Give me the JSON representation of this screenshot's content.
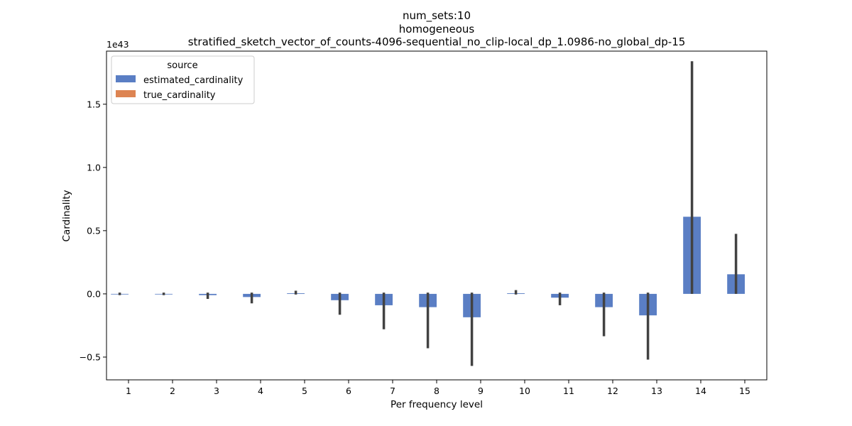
{
  "chart_data": {
    "type": "bar",
    "title_lines": [
      "num_sets:10",
      "homogeneous",
      "stratified_sketch_vector_of_counts-4096-sequential_no_clip-local_dp_1.0986-no_global_dp-15"
    ],
    "xlabel": "Per frequency level",
    "ylabel": "Cardinality",
    "y_offset_label": "1e43",
    "categories": [
      "1",
      "2",
      "3",
      "4",
      "5",
      "6",
      "7",
      "8",
      "9",
      "10",
      "11",
      "12",
      "13",
      "14",
      "15"
    ],
    "ylim": [
      -0.68,
      1.92
    ],
    "y_ticks": [
      -0.5,
      0.0,
      0.5,
      1.0,
      1.5
    ],
    "y_tick_labels": [
      "−0.5",
      "0.0",
      "0.5",
      "1.0",
      "1.5"
    ],
    "legend": {
      "title": "source",
      "placement": "upper-left",
      "entries": [
        {
          "label": "estimated_cardinality",
          "color": "#5a7ec4"
        },
        {
          "label": "true_cardinality",
          "color": "#dd8452"
        }
      ]
    },
    "series": [
      {
        "name": "estimated_cardinality",
        "color": "#5a7ec4",
        "values": [
          0.0,
          0.0,
          -0.01,
          -0.025,
          0.005,
          -0.05,
          -0.09,
          -0.105,
          -0.185,
          0.005,
          -0.03,
          -0.105,
          -0.17,
          0.61,
          0.155
        ],
        "error_low": [
          -0.01,
          -0.01,
          -0.04,
          -0.075,
          -0.005,
          -0.165,
          -0.28,
          -0.43,
          -0.57,
          -0.005,
          -0.09,
          -0.335,
          -0.52,
          0.0,
          0.0
        ],
        "error_high": [
          0.01,
          0.01,
          0.01,
          0.01,
          0.025,
          0.01,
          0.01,
          0.01,
          0.01,
          0.03,
          0.01,
          0.01,
          0.01,
          1.84,
          0.475
        ]
      },
      {
        "name": "true_cardinality",
        "color": "#dd8452",
        "values": [
          0,
          0,
          0,
          0,
          0,
          0,
          0,
          0,
          0,
          0,
          0,
          0,
          0,
          0,
          0
        ]
      }
    ]
  }
}
